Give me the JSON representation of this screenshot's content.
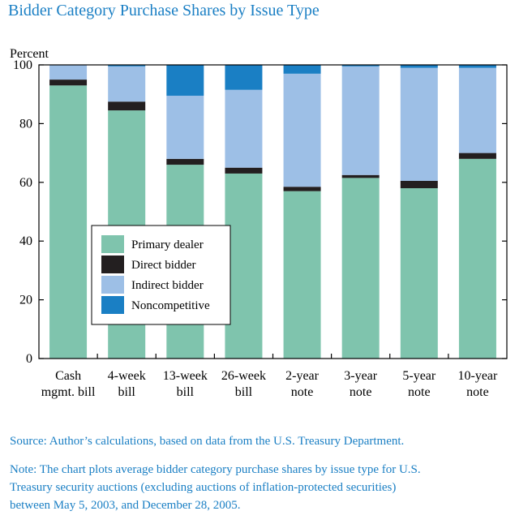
{
  "title": "Bidder Category Purchase Shares by Issue Type",
  "source": "Source: Author’s calculations, based on data from the U.S. Treasury Department.",
  "note_lines": [
    "Note: The chart plots average bidder category purchase shares by issue type for U.S.",
    "Treasury security auctions (excluding auctions of inflation-protected securities)",
    "between May 5, 2003, and December 28, 2005."
  ],
  "colors": {
    "primary_dealer": "#7fc4ad",
    "direct_bidder": "#231f20",
    "indirect_bidder": "#9dbfe6",
    "noncompetitive": "#1a7fc4",
    "title": "#1a7fc4"
  },
  "chart_data": {
    "type": "bar",
    "stacked": true,
    "ylabel": "Percent",
    "ylim": [
      0,
      100
    ],
    "yticks": [
      0,
      20,
      40,
      60,
      80,
      100
    ],
    "categories": [
      [
        "Cash",
        "mgmt. bill"
      ],
      [
        "4-week",
        "bill"
      ],
      [
        "13-week",
        "bill"
      ],
      [
        "26-week",
        "bill"
      ],
      [
        "2-year",
        "note"
      ],
      [
        "3-year",
        "note"
      ],
      [
        "5-year",
        "note"
      ],
      [
        "10-year",
        "note"
      ]
    ],
    "series": [
      {
        "name": "Primary dealer",
        "key": "primary_dealer",
        "values": [
          93,
          84.5,
          66,
          63,
          57,
          61.5,
          58,
          68
        ]
      },
      {
        "name": "Direct bidder",
        "key": "direct_bidder",
        "values": [
          2,
          3,
          2,
          2,
          1.5,
          1,
          2.5,
          2
        ]
      },
      {
        "name": "Indirect bidder",
        "key": "indirect_bidder",
        "values": [
          5,
          12,
          21.5,
          26.5,
          38.5,
          37,
          38.5,
          29
        ]
      },
      {
        "name": "Noncompetitive",
        "key": "noncompetitive",
        "values": [
          0,
          0.5,
          10.5,
          8.5,
          3,
          0.5,
          1,
          1
        ]
      }
    ],
    "legend": [
      "Primary dealer",
      "Direct bidder",
      "Indirect bidder",
      "Noncompetitive"
    ],
    "legend_position": "lower-left inside",
    "grid": false
  }
}
